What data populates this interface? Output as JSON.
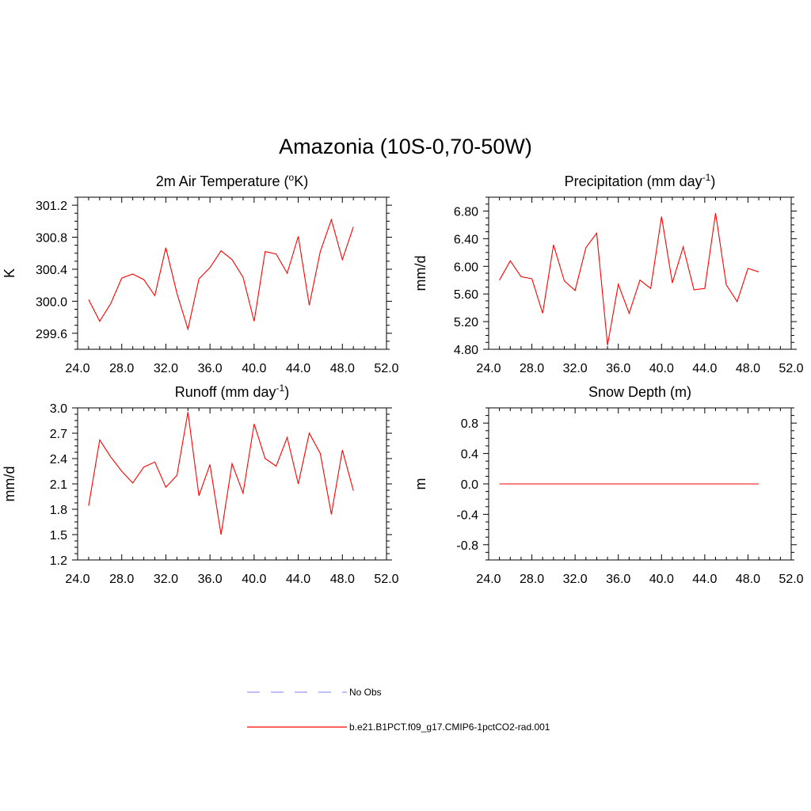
{
  "figure": {
    "title": "Amazonia (10S-0,70-50W)"
  },
  "legend": [
    {
      "label": "No Obs",
      "color": "#9999ff",
      "style": "dashed"
    },
    {
      "label": "b.e21.B1PCT.f09_g17.CMIP6-1pctCO2-rad.001",
      "color": "#ff0000",
      "style": "solid"
    }
  ],
  "colors": {
    "series": "#ff0000",
    "obs": "#9999ff",
    "axes": "#000000"
  },
  "chart_data": [
    {
      "type": "line",
      "title": "2m Air Temperature (",
      "title_sup": "o",
      "title_end": "K)",
      "xlabel": "",
      "ylabel": "K",
      "xlim": [
        24,
        52
      ],
      "ylim": [
        299.4,
        301.3
      ],
      "xticks": [
        "24.0",
        "28.0",
        "32.0",
        "36.0",
        "40.0",
        "44.0",
        "48.0",
        "52.0"
      ],
      "yticks": [
        "299.6",
        "300.0",
        "300.4",
        "300.8",
        "301.2"
      ],
      "x": [
        25,
        26,
        27,
        28,
        29,
        30,
        31,
        32,
        33,
        34,
        35,
        36,
        37,
        38,
        39,
        40,
        41,
        42,
        43,
        44,
        45,
        46,
        47,
        48,
        49
      ],
      "series": [
        {
          "values": [
            300.02,
            299.75,
            299.97,
            300.29,
            300.34,
            300.27,
            300.07,
            300.67,
            300.1,
            299.65,
            300.28,
            300.42,
            300.63,
            300.52,
            300.3,
            299.75,
            300.62,
            300.59,
            300.35,
            300.81,
            299.95,
            300.62,
            301.02,
            300.52,
            300.93
          ]
        }
      ]
    },
    {
      "type": "line",
      "title": "Precipitation (mm day",
      "title_sup": "-1",
      "title_end": ")",
      "xlabel": "",
      "ylabel": "mm/d",
      "xlim": [
        24,
        52
      ],
      "ylim": [
        4.8,
        7.0
      ],
      "xticks": [
        "24.0",
        "28.0",
        "32.0",
        "36.0",
        "40.0",
        "44.0",
        "48.0",
        "52.0"
      ],
      "yticks": [
        "4.80",
        "5.20",
        "5.60",
        "6.00",
        "6.40",
        "6.80"
      ],
      "x": [
        25,
        26,
        27,
        28,
        29,
        30,
        31,
        32,
        33,
        34,
        35,
        36,
        37,
        38,
        39,
        40,
        41,
        42,
        43,
        44,
        45,
        46,
        47,
        48,
        49
      ],
      "series": [
        {
          "values": [
            5.8,
            6.08,
            5.85,
            5.82,
            5.32,
            6.31,
            5.79,
            5.65,
            6.27,
            6.48,
            4.86,
            5.74,
            5.32,
            5.8,
            5.68,
            6.72,
            5.76,
            6.28,
            5.66,
            5.68,
            6.77,
            5.73,
            5.49,
            5.97,
            5.92
          ]
        }
      ]
    },
    {
      "type": "line",
      "title": "Runoff (mm day",
      "title_sup": "-1",
      "title_end": ")",
      "xlabel": "",
      "ylabel": "mm/d",
      "xlim": [
        24,
        52
      ],
      "ylim": [
        1.2,
        3.0
      ],
      "xticks": [
        "24.0",
        "28.0",
        "32.0",
        "36.0",
        "40.0",
        "44.0",
        "48.0",
        "52.0"
      ],
      "yticks": [
        "1.2",
        "1.5",
        "1.8",
        "2.1",
        "2.4",
        "2.7",
        "3.0"
      ],
      "x": [
        25,
        26,
        27,
        28,
        29,
        30,
        31,
        32,
        33,
        34,
        35,
        36,
        37,
        38,
        39,
        40,
        41,
        42,
        43,
        44,
        45,
        46,
        47,
        48,
        49
      ],
      "series": [
        {
          "values": [
            1.84,
            2.62,
            2.42,
            2.25,
            2.11,
            2.3,
            2.36,
            2.06,
            2.2,
            2.95,
            1.96,
            2.33,
            1.5,
            2.34,
            1.99,
            2.81,
            2.4,
            2.31,
            2.65,
            2.1,
            2.7,
            2.46,
            1.74,
            2.5,
            2.02
          ]
        }
      ]
    },
    {
      "type": "line",
      "title": "Snow Depth (m)",
      "title_sup": "",
      "title_end": "",
      "xlabel": "",
      "ylabel": "m",
      "xlim": [
        24,
        52
      ],
      "ylim": [
        -1.0,
        1.0
      ],
      "xticks": [
        "24.0",
        "28.0",
        "32.0",
        "36.0",
        "40.0",
        "44.0",
        "48.0",
        "52.0"
      ],
      "yticks": [
        "-0.8",
        "-0.4",
        "0.0",
        "0.4",
        "0.8"
      ],
      "x": [
        25,
        26,
        27,
        28,
        29,
        30,
        31,
        32,
        33,
        34,
        35,
        36,
        37,
        38,
        39,
        40,
        41,
        42,
        43,
        44,
        45,
        46,
        47,
        48,
        49
      ],
      "series": [
        {
          "values": [
            0,
            0,
            0,
            0,
            0,
            0,
            0,
            0,
            0,
            0,
            0,
            0,
            0,
            0,
            0,
            0,
            0,
            0,
            0,
            0,
            0,
            0,
            0,
            0,
            0
          ]
        }
      ]
    }
  ]
}
